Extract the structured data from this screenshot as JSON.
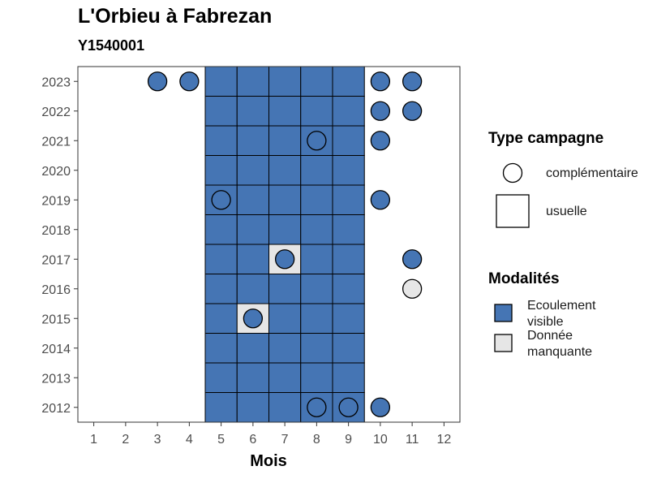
{
  "colors": {
    "visible": "#4575B4",
    "missing": "#E6E6E6",
    "border": "#000000",
    "axis": "#333333"
  },
  "chart_data": {
    "type": "heatmap",
    "title": "L'Orbieu à Fabrezan",
    "subtitle": "Y1540001",
    "xlabel": "Mois",
    "ylabel": "",
    "x_ticks": [
      1,
      2,
      3,
      4,
      5,
      6,
      7,
      8,
      9,
      10,
      11,
      12
    ],
    "y_ticks": [
      2012,
      2013,
      2014,
      2015,
      2016,
      2017,
      2018,
      2019,
      2020,
      2021,
      2022,
      2023
    ],
    "xlim": [
      0.5,
      12.5
    ],
    "ylim": [
      2011.5,
      2023.5
    ],
    "grid": false,
    "legend_position": "right",
    "legend": {
      "shape_title": "Type campagne",
      "shape_entries": [
        {
          "key": "complementaire",
          "label": "complémentaire",
          "shape": "circle"
        },
        {
          "key": "usuelle",
          "label": "usuelle",
          "shape": "square"
        }
      ],
      "fill_title": "Modalités",
      "fill_entries": [
        {
          "key": "visible",
          "label_lines": [
            "Ecoulement",
            "visible"
          ]
        },
        {
          "key": "missing",
          "label_lines": [
            "Donnée",
            "manquante"
          ]
        }
      ]
    },
    "usuelle_months": [
      5,
      6,
      7,
      8,
      9
    ],
    "usuelle_missing": [
      {
        "year": 2015,
        "month": 6
      },
      {
        "year": 2017,
        "month": 7
      }
    ],
    "complementaire": [
      {
        "year": 2023,
        "month": 3,
        "value": "visible"
      },
      {
        "year": 2023,
        "month": 4,
        "value": "visible"
      },
      {
        "year": 2023,
        "month": 10,
        "value": "visible"
      },
      {
        "year": 2023,
        "month": 11,
        "value": "visible"
      },
      {
        "year": 2022,
        "month": 10,
        "value": "visible"
      },
      {
        "year": 2022,
        "month": 11,
        "value": "visible"
      },
      {
        "year": 2021,
        "month": 8,
        "value": "visible"
      },
      {
        "year": 2021,
        "month": 10,
        "value": "visible"
      },
      {
        "year": 2019,
        "month": 5,
        "value": "visible"
      },
      {
        "year": 2019,
        "month": 10,
        "value": "visible"
      },
      {
        "year": 2017,
        "month": 7,
        "value": "visible"
      },
      {
        "year": 2017,
        "month": 11,
        "value": "visible"
      },
      {
        "year": 2016,
        "month": 11,
        "value": "missing"
      },
      {
        "year": 2015,
        "month": 6,
        "value": "visible"
      },
      {
        "year": 2012,
        "month": 8,
        "value": "visible"
      },
      {
        "year": 2012,
        "month": 9,
        "value": "visible"
      },
      {
        "year": 2012,
        "month": 10,
        "value": "visible"
      }
    ]
  }
}
